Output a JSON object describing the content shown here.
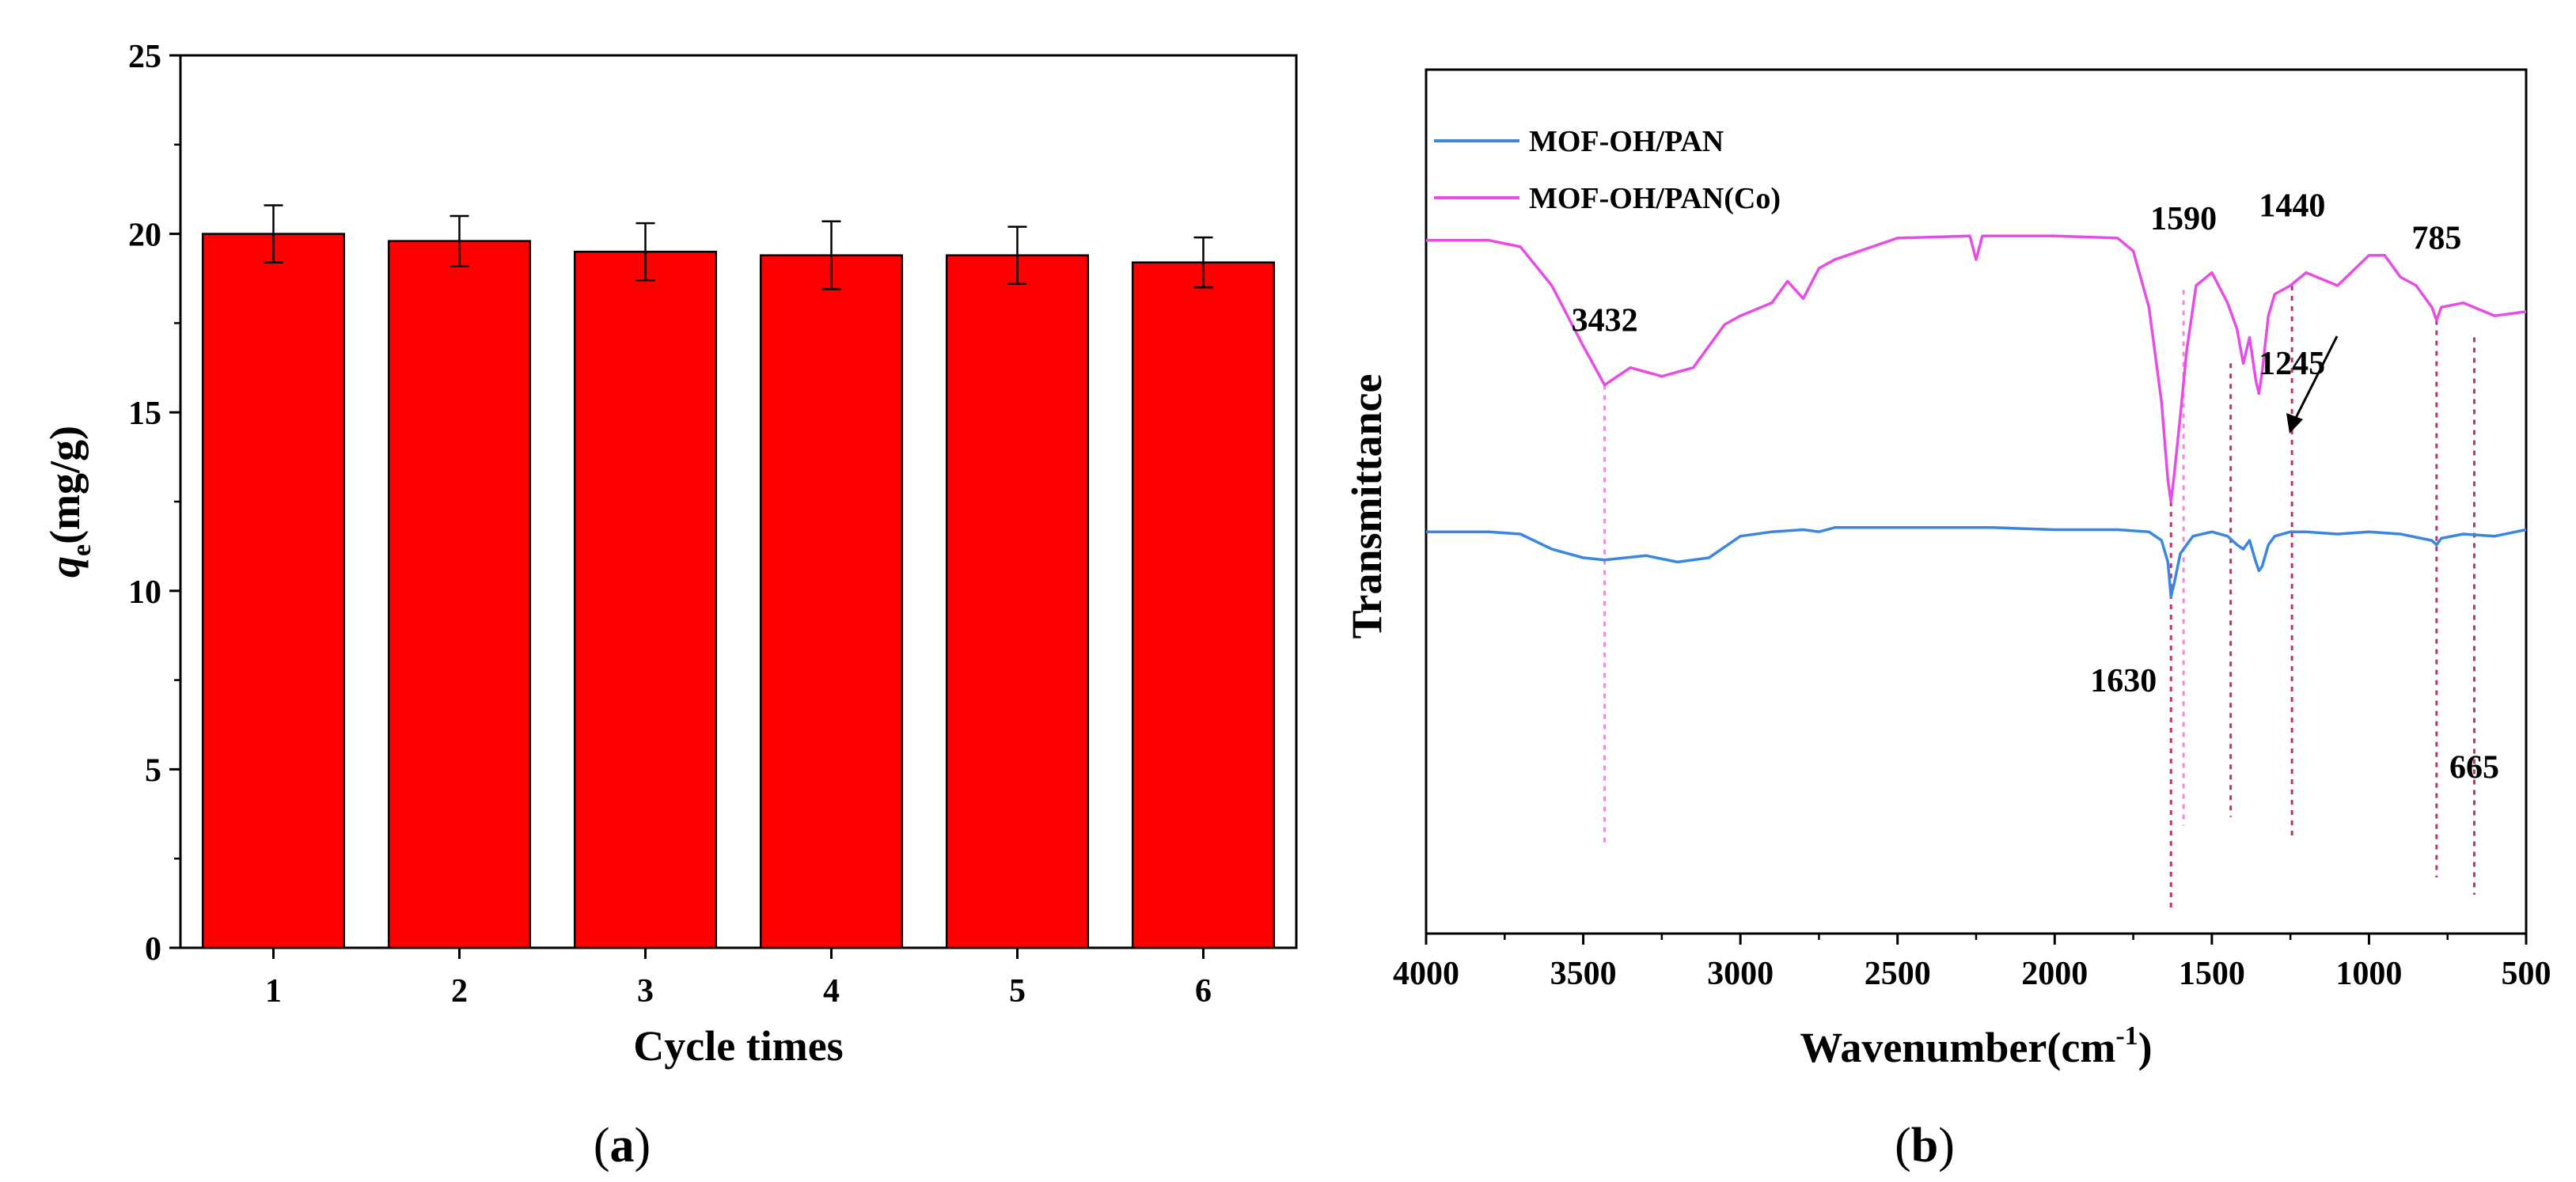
{
  "chart_data": [
    {
      "panel": "(a)",
      "panel_open": "(",
      "panel_letter": "a",
      "panel_close": ")",
      "type": "bar",
      "categories": [
        "1",
        "2",
        "3",
        "4",
        "5",
        "6"
      ],
      "values": [
        20.0,
        19.8,
        19.5,
        19.4,
        19.4,
        19.2
      ],
      "errors": [
        0.8,
        0.7,
        0.8,
        0.95,
        0.8,
        0.7
      ],
      "bar_color": "#ff0000",
      "xlabel": "Cycle times",
      "ylabel_main": "q",
      "ylabel_sub": "e",
      "ylabel_unit": "(mg/g)",
      "ylim": [
        0,
        25
      ],
      "yticks": [
        "0",
        "5",
        "10",
        "15",
        "20",
        "25"
      ]
    },
    {
      "panel": "(b)",
      "panel_open": "(",
      "panel_letter": "b",
      "panel_close": ")",
      "type": "line",
      "xlabel_main": "Wavenumber(cm",
      "xlabel_sup": "-1",
      "xlabel_close": ")",
      "ylabel": "Transmittance",
      "xlim": [
        4000,
        500
      ],
      "xticks": [
        "4000",
        "3500",
        "3000",
        "2500",
        "2000",
        "1500",
        "1000",
        "500"
      ],
      "legend_position": "top-left",
      "series": [
        {
          "name": "MOF-OH/PAN",
          "color": "#3a86e0",
          "x": [
            4000,
            3800,
            3700,
            3600,
            3500,
            3432,
            3300,
            3200,
            3100,
            3000,
            2900,
            2800,
            2750,
            2700,
            2500,
            2200,
            2000,
            1800,
            1700,
            1660,
            1640,
            1630,
            1620,
            1600,
            1560,
            1500,
            1450,
            1420,
            1400,
            1380,
            1360,
            1350,
            1340,
            1320,
            1300,
            1250,
            1200,
            1100,
            1000,
            900,
            800,
            785,
            770,
            700,
            600,
            500
          ],
          "y": [
            9.3,
            9.3,
            9.25,
            8.9,
            8.7,
            8.65,
            8.75,
            8.6,
            8.7,
            9.2,
            9.3,
            9.35,
            9.3,
            9.4,
            9.4,
            9.4,
            9.35,
            9.35,
            9.3,
            9.1,
            8.6,
            7.8,
            8.1,
            8.8,
            9.2,
            9.3,
            9.2,
            9.0,
            8.9,
            9.1,
            8.6,
            8.4,
            8.5,
            9.0,
            9.2,
            9.3,
            9.3,
            9.25,
            9.3,
            9.25,
            9.1,
            9.0,
            9.15,
            9.25,
            9.2,
            9.35
          ]
        },
        {
          "name": "MOF-OH/PAN(Co)",
          "color": "#e64de6",
          "x": [
            4000,
            3800,
            3700,
            3600,
            3500,
            3432,
            3350,
            3250,
            3150,
            3050,
            3000,
            2900,
            2850,
            2800,
            2750,
            2700,
            2500,
            2270,
            2250,
            2230,
            2000,
            1800,
            1750,
            1700,
            1660,
            1640,
            1630,
            1620,
            1600,
            1580,
            1550,
            1500,
            1450,
            1420,
            1400,
            1380,
            1360,
            1350,
            1340,
            1320,
            1300,
            1250,
            1200,
            1100,
            1000,
            950,
            900,
            850,
            800,
            785,
            770,
            700,
            600,
            500
          ],
          "y": [
            16.05,
            16.05,
            15.9,
            15.0,
            13.6,
            12.7,
            13.1,
            12.9,
            13.1,
            14.1,
            14.3,
            14.6,
            15.1,
            14.7,
            15.4,
            15.6,
            16.1,
            16.15,
            15.6,
            16.15,
            16.15,
            16.1,
            15.8,
            14.5,
            12.3,
            10.5,
            10.0,
            10.6,
            12.0,
            13.5,
            15.0,
            15.3,
            14.6,
            14.0,
            13.2,
            13.8,
            12.8,
            12.5,
            13.0,
            14.3,
            14.8,
            15.0,
            15.3,
            15.0,
            15.7,
            15.7,
            15.2,
            15.0,
            14.5,
            14.2,
            14.5,
            14.6,
            14.3,
            14.4
          ]
        }
      ],
      "peak_labels": [
        "3432",
        "1590",
        "1440",
        "1245",
        "785",
        "1630",
        "665"
      ],
      "peak_positions": [
        3432,
        1590,
        1440,
        1245,
        785,
        1630,
        665
      ]
    }
  ]
}
